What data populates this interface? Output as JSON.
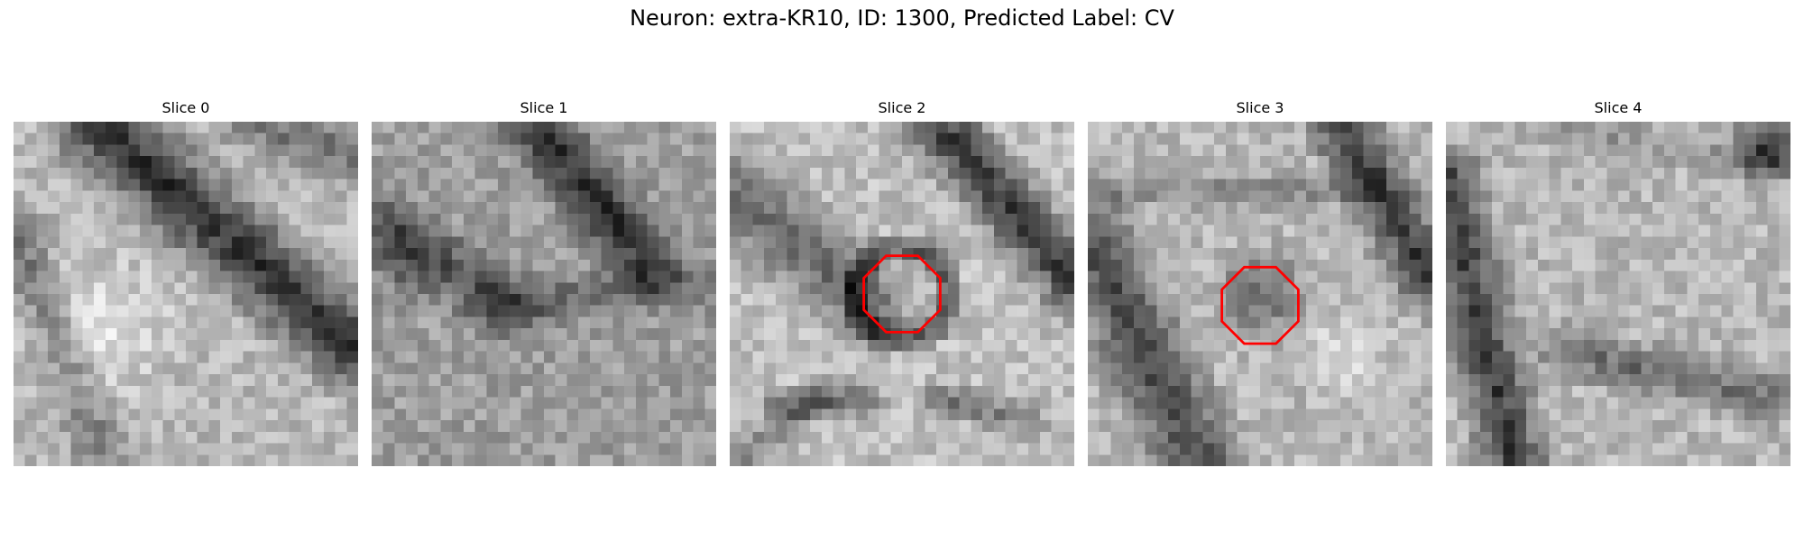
{
  "figure": {
    "title": "Neuron: extra-KR10, ID: 1300, Predicted Label: CV"
  },
  "slices": [
    {
      "title": "Slice 0",
      "has_marker": false
    },
    {
      "title": "Slice 1",
      "has_marker": false
    },
    {
      "title": "Slice 2",
      "has_marker": true
    },
    {
      "title": "Slice 3",
      "has_marker": true
    },
    {
      "title": "Slice 4",
      "has_marker": false
    }
  ],
  "colors": {
    "marker": "#ff0000",
    "background": "#ffffff"
  }
}
